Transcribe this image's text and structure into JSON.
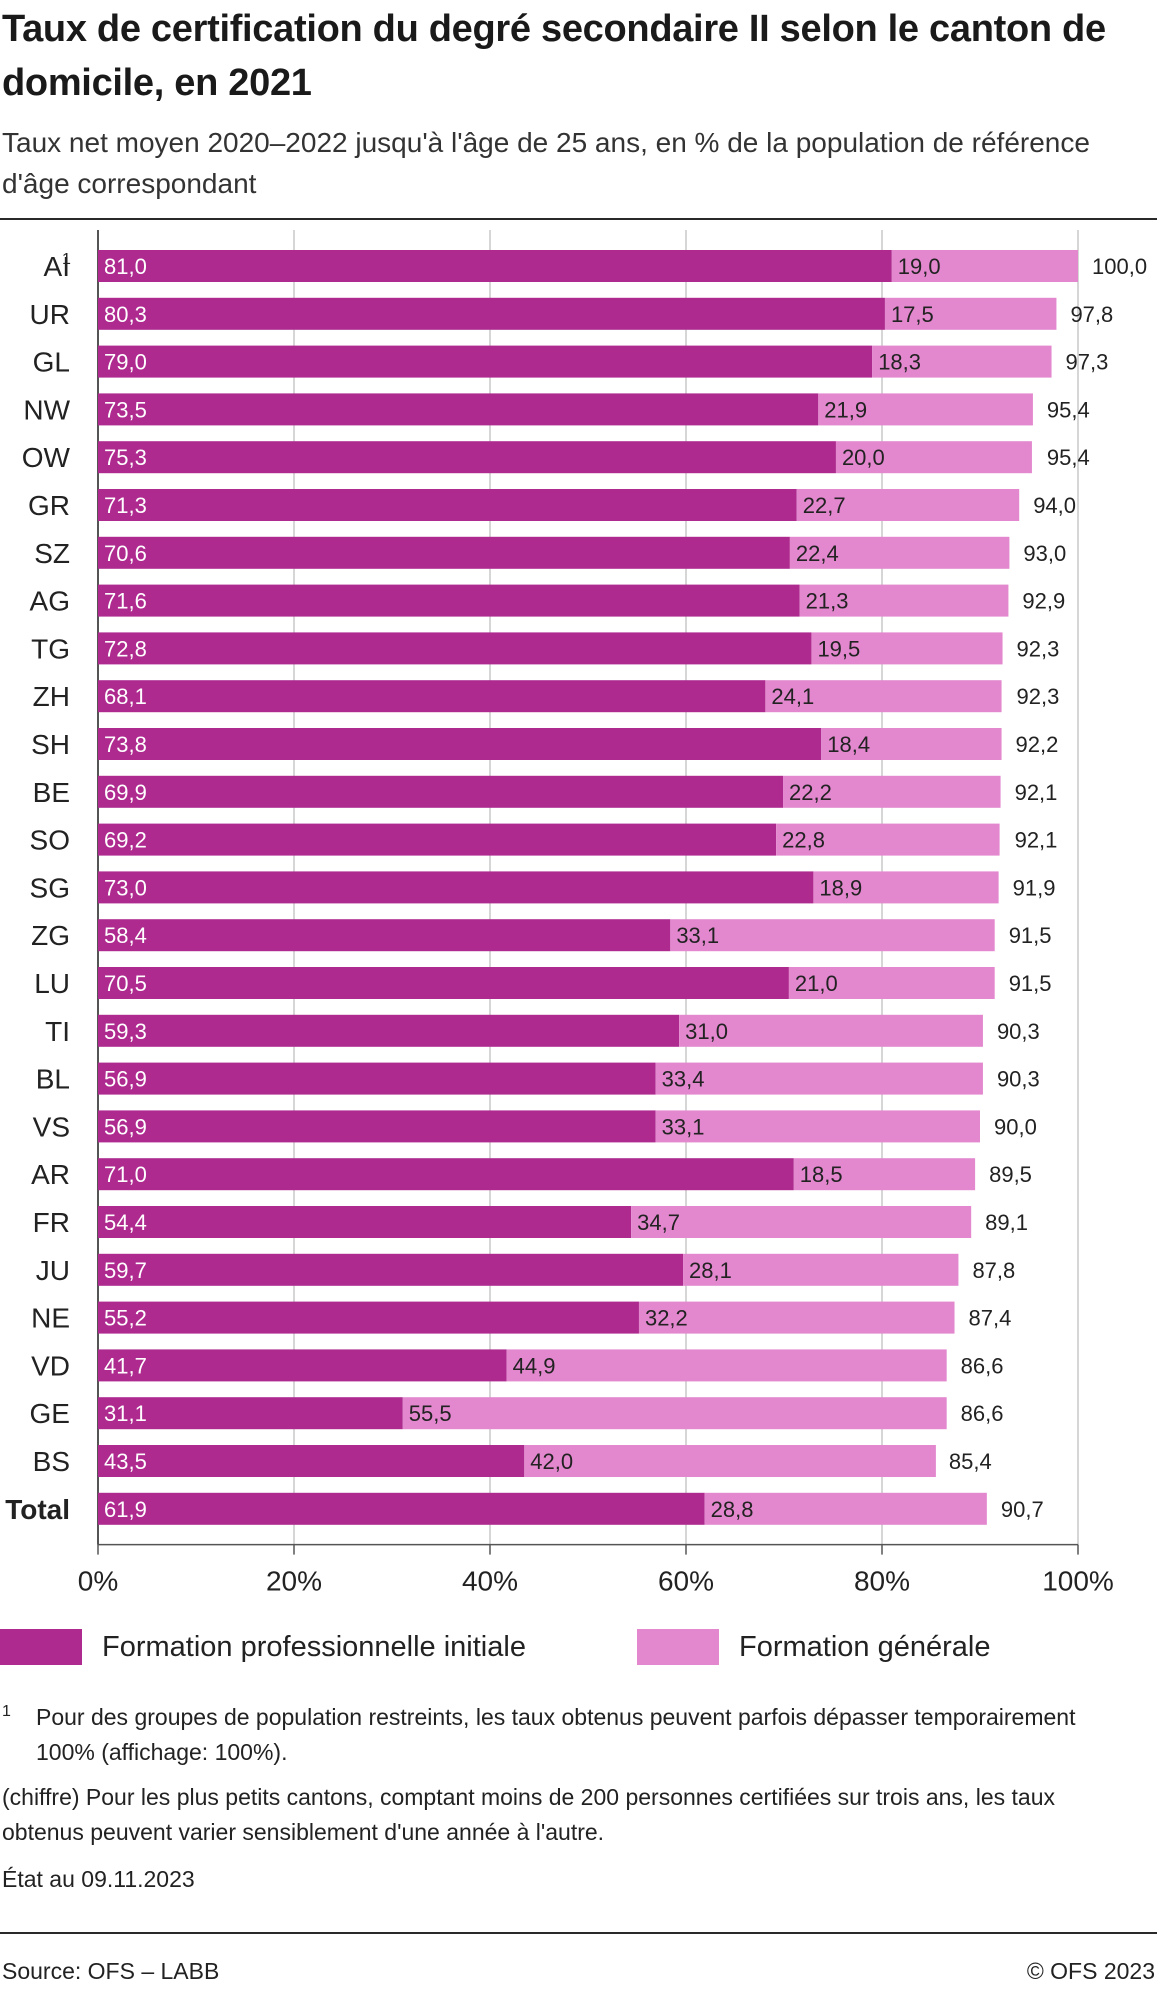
{
  "header": {
    "title": "Taux de certification du degré secondaire II selon le canton de domicile, en 2021",
    "subtitle": "Taux net moyen 2020–2022 jusqu'à l'âge de 25 ans, en % de la population de référence d'âge correspondant"
  },
  "chart_data": {
    "type": "bar",
    "orientation": "horizontal",
    "stacked": true,
    "categories": [
      "AI",
      "UR",
      "GL",
      "NW",
      "OW",
      "GR",
      "SZ",
      "AG",
      "TG",
      "ZH",
      "SH",
      "BE",
      "SO",
      "SG",
      "ZG",
      "LU",
      "TI",
      "BL",
      "VS",
      "AR",
      "FR",
      "JU",
      "NE",
      "VD",
      "GE",
      "BS",
      "Total"
    ],
    "category_superscripts": {
      "AI": "1"
    },
    "bold_categories": [
      "Total"
    ],
    "series": [
      {
        "name": "Formation professionnelle initiale",
        "color": "#ae2a8f",
        "values": [
          81.0,
          80.3,
          79.0,
          73.5,
          75.3,
          71.3,
          70.6,
          71.6,
          72.8,
          68.1,
          73.8,
          69.9,
          69.2,
          73.0,
          58.4,
          70.5,
          59.3,
          56.9,
          56.9,
          71.0,
          54.4,
          59.7,
          55.2,
          41.7,
          31.1,
          43.5,
          61.9
        ],
        "labels": [
          "81,0",
          "80,3",
          "79,0",
          "73,5",
          "75,3",
          "71,3",
          "70,6",
          "71,6",
          "72,8",
          "68,1",
          "73,8",
          "69,9",
          "69,2",
          "73,0",
          "58,4",
          "70,5",
          "59,3",
          "56,9",
          "56,9",
          "71,0",
          "54,4",
          "59,7",
          "55,2",
          "41,7",
          "31,1",
          "43,5",
          "61,9"
        ]
      },
      {
        "name": "Formation générale",
        "color": "#e388cf",
        "values": [
          19.0,
          17.5,
          18.3,
          21.9,
          20.0,
          22.7,
          22.4,
          21.3,
          19.5,
          24.1,
          18.4,
          22.2,
          22.8,
          18.9,
          33.1,
          21.0,
          31.0,
          33.4,
          33.1,
          18.5,
          34.7,
          28.1,
          32.2,
          44.9,
          55.5,
          42.0,
          28.8
        ],
        "labels": [
          "19,0",
          "17,5",
          "18,3",
          "21,9",
          "20,0",
          "22,7",
          "22,4",
          "21,3",
          "19,5",
          "24,1",
          "18,4",
          "22,2",
          "22,8",
          "18,9",
          "33,1",
          "21,0",
          "31,0",
          "33,4",
          "33,1",
          "18,5",
          "34,7",
          "28,1",
          "32,2",
          "44,9",
          "55,5",
          "42,0",
          "28,8"
        ]
      }
    ],
    "totals": [
      100.0,
      97.8,
      97.3,
      95.4,
      95.4,
      94.0,
      93.0,
      92.9,
      92.3,
      92.3,
      92.2,
      92.1,
      92.1,
      91.9,
      91.5,
      91.5,
      90.3,
      90.3,
      90.0,
      89.5,
      89.1,
      87.8,
      87.4,
      86.6,
      86.6,
      85.4,
      90.7
    ],
    "total_labels": [
      "100,0",
      "97,8",
      "97,3",
      "95,4",
      "95,4",
      "94,0",
      "93,0",
      "92,9",
      "92,3",
      "92,3",
      "92,2",
      "92,1",
      "92,1",
      "91,9",
      "91,5",
      "91,5",
      "90,3",
      "90,3",
      "90,0",
      "89,5",
      "89,1",
      "87,8",
      "87,4",
      "86,6",
      "86,6",
      "85,4",
      "90,7"
    ],
    "xlim": [
      0,
      100
    ],
    "xticks": [
      0,
      20,
      40,
      60,
      80,
      100
    ],
    "xtick_labels": [
      "0%",
      "20%",
      "40%",
      "60%",
      "80%",
      "100%"
    ],
    "grid": "vertical",
    "legend": "bottom"
  },
  "legend": {
    "items": [
      {
        "label": "Formation professionnelle initiale",
        "color": "#ae2a8f"
      },
      {
        "label": "Formation générale",
        "color": "#e388cf"
      }
    ]
  },
  "footnotes": {
    "note1_marker": "1",
    "note1_text": "Pour des groupes de population restreints, les taux obtenus peuvent parfois dépasser temporairement 100% (affichage: 100%).",
    "note2_text": "(chiffre) Pour les plus petits cantons, comptant moins de 200 personnes certifiées sur trois ans, les taux obtenus peuvent varier sensiblement d'une année à l'autre.",
    "status_date": "État au 09.11.2023"
  },
  "footer": {
    "source": "Source: OFS – LABB",
    "copyright": "© OFS 2023"
  }
}
